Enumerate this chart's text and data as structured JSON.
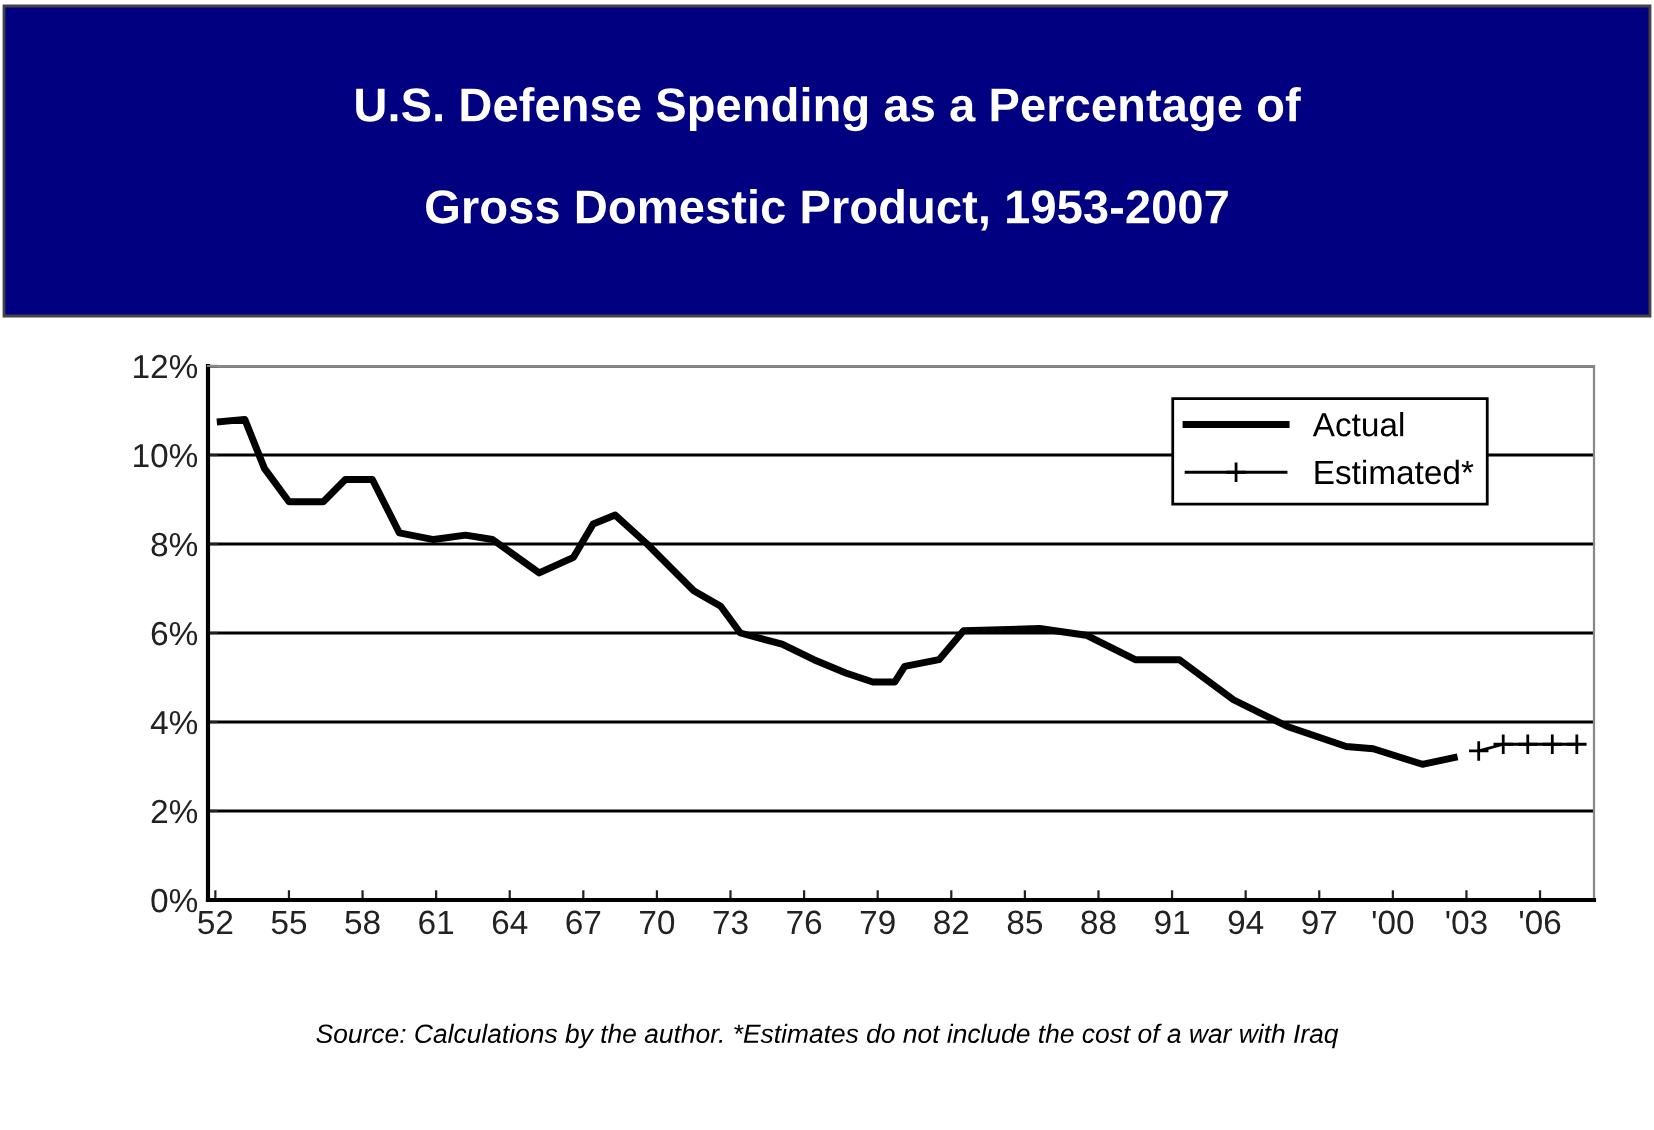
{
  "chart_data": {
    "type": "line",
    "title": "U.S. Defense Spending as a Percentage of\n\nGross Domestic Product, 1953-2007",
    "annotations": [
      "Source: Calculations by the author. *Estimates do not include the cost of a war with Iraq"
    ],
    "series": [
      {
        "name": "Actual",
        "color": "#000000",
        "marker": "none",
        "x": [
          1952.2,
          1953.2,
          1954,
          1955,
          1956.4,
          1957.3,
          1958.4,
          1959.5,
          1960.9,
          1962.2,
          1963.3,
          1965.2,
          1966.6,
          1967.4,
          1968.3,
          1969.6,
          1971.5,
          1972.6,
          1973.4,
          1975.1,
          1976.4,
          1977.7,
          1978.8,
          1979.7,
          1980.1,
          1981.5,
          1982.5,
          1985.6,
          1987.5,
          1989.5,
          1991.3,
          1993.5,
          1995.7,
          1998.1,
          1999.2,
          2001.2,
          2002.5
        ],
        "values": [
          10.75,
          10.8,
          9.7,
          8.95,
          8.95,
          9.45,
          9.45,
          8.25,
          8.1,
          8.2,
          8.1,
          7.35,
          7.7,
          8.45,
          8.65,
          8.0,
          6.95,
          6.6,
          6.0,
          5.75,
          5.4,
          5.1,
          4.9,
          4.9,
          5.25,
          5.4,
          6.05,
          6.1,
          5.95,
          5.4,
          5.4,
          4.5,
          3.9,
          3.45,
          3.4,
          3.05,
          3.2
        ]
      },
      {
        "name": "Estimated*",
        "color": "#000000",
        "marker": "cross",
        "x": [
          2003.5,
          2004.5,
          2005.5,
          2006.5,
          2007.5
        ],
        "values": [
          3.35,
          3.5,
          3.5,
          3.5,
          3.5
        ]
      }
    ],
    "xlim": [
      1951.7,
      2008.2
    ],
    "xticks": [
      {
        "value": 1952,
        "label": "52"
      },
      {
        "value": 1955,
        "label": "55"
      },
      {
        "value": 1958,
        "label": "58"
      },
      {
        "value": 1961,
        "label": "61"
      },
      {
        "value": 1964,
        "label": "64"
      },
      {
        "value": 1967,
        "label": "67"
      },
      {
        "value": 1970,
        "label": "70"
      },
      {
        "value": 1973,
        "label": "73"
      },
      {
        "value": 1976,
        "label": "76"
      },
      {
        "value": 1979,
        "label": "79"
      },
      {
        "value": 1982,
        "label": "82"
      },
      {
        "value": 1985,
        "label": "85"
      },
      {
        "value": 1988,
        "label": "88"
      },
      {
        "value": 1991,
        "label": "91"
      },
      {
        "value": 1994,
        "label": "94"
      },
      {
        "value": 1997,
        "label": "97"
      },
      {
        "value": 2000,
        "label": "'00"
      },
      {
        "value": 2003,
        "label": "'03"
      },
      {
        "value": 2006,
        "label": "'06"
      }
    ],
    "ylim": [
      0,
      12
    ],
    "yticks": [
      {
        "value": 0,
        "label": "0%"
      },
      {
        "value": 2,
        "label": "2%"
      },
      {
        "value": 4,
        "label": "4%"
      },
      {
        "value": 6,
        "label": "6%"
      },
      {
        "value": 8,
        "label": "8%"
      },
      {
        "value": 10,
        "label": "10%"
      },
      {
        "value": 12,
        "label": "12%"
      }
    ],
    "grid": "y",
    "legend": "top right"
  }
}
